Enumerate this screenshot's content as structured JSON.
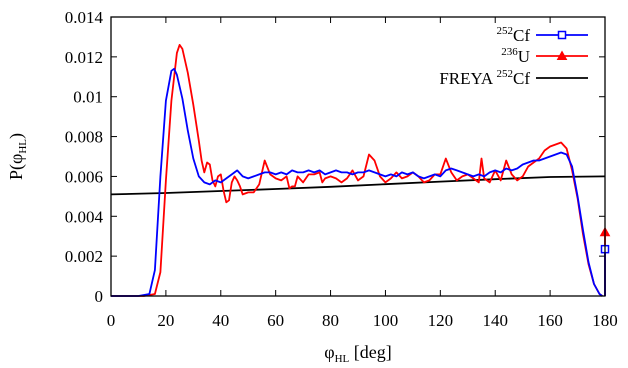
{
  "chart_data": {
    "type": "line",
    "xlabel": {
      "main": "φ",
      "sub": "HL",
      "suffix": " [deg]"
    },
    "ylabel": {
      "prefix": "P(φ",
      "sub": "HL",
      "suffix": ")"
    },
    "xlim": [
      0,
      180
    ],
    "ylim": [
      0,
      0.014
    ],
    "x_ticks": [
      0,
      20,
      40,
      60,
      80,
      100,
      120,
      140,
      160,
      180
    ],
    "y_ticks": [
      0,
      0.002,
      0.004,
      0.006,
      0.008,
      0.01,
      0.012,
      0.014
    ],
    "x_tick_labels": [
      "0",
      "20",
      "40",
      "60",
      "80",
      "100",
      "120",
      "140",
      "160",
      "180"
    ],
    "y_tick_labels": [
      "0",
      "0.002",
      "0.004",
      "0.006",
      "0.008",
      "0.01",
      "0.012",
      "0.014"
    ],
    "grid": false,
    "legend_position": "top-right",
    "series": [
      {
        "name": "252Cf",
        "legend": {
          "sup": "252",
          "text": "Cf"
        },
        "color": "#0000ff",
        "marker": "square",
        "points": [
          [
            0,
            0
          ],
          [
            10,
            0
          ],
          [
            14,
            0.0001
          ],
          [
            16,
            0.0013
          ],
          [
            18,
            0.006
          ],
          [
            20,
            0.0098
          ],
          [
            22,
            0.0113
          ],
          [
            23,
            0.0114
          ],
          [
            24,
            0.0111
          ],
          [
            26,
            0.0099
          ],
          [
            28,
            0.0083
          ],
          [
            30,
            0.0069
          ],
          [
            32,
            0.006
          ],
          [
            34,
            0.0057
          ],
          [
            36,
            0.0056
          ],
          [
            38,
            0.0058
          ],
          [
            40,
            0.0057
          ],
          [
            42,
            0.0059
          ],
          [
            44,
            0.0061
          ],
          [
            46,
            0.0063
          ],
          [
            48,
            0.006
          ],
          [
            50,
            0.0059
          ],
          [
            52,
            0.006
          ],
          [
            54,
            0.0061
          ],
          [
            56,
            0.0062
          ],
          [
            58,
            0.0062
          ],
          [
            60,
            0.0061
          ],
          [
            62,
            0.0062
          ],
          [
            64,
            0.0061
          ],
          [
            66,
            0.0063
          ],
          [
            68,
            0.0062
          ],
          [
            70,
            0.0062
          ],
          [
            72,
            0.0063
          ],
          [
            74,
            0.0062
          ],
          [
            76,
            0.0063
          ],
          [
            78,
            0.0061
          ],
          [
            80,
            0.0062
          ],
          [
            82,
            0.0063
          ],
          [
            84,
            0.0062
          ],
          [
            86,
            0.0062
          ],
          [
            88,
            0.0061
          ],
          [
            90,
            0.0062
          ],
          [
            92,
            0.0062
          ],
          [
            94,
            0.0063
          ],
          [
            96,
            0.0062
          ],
          [
            98,
            0.0061
          ],
          [
            100,
            0.006
          ],
          [
            102,
            0.0061
          ],
          [
            104,
            0.006
          ],
          [
            106,
            0.0062
          ],
          [
            108,
            0.0061
          ],
          [
            110,
            0.0062
          ],
          [
            112,
            0.006
          ],
          [
            114,
            0.0059
          ],
          [
            116,
            0.006
          ],
          [
            118,
            0.0061
          ],
          [
            120,
            0.006
          ],
          [
            122,
            0.0063
          ],
          [
            124,
            0.0064
          ],
          [
            126,
            0.0063
          ],
          [
            128,
            0.0062
          ],
          [
            130,
            0.0061
          ],
          [
            132,
            0.006
          ],
          [
            134,
            0.0061
          ],
          [
            136,
            0.006
          ],
          [
            138,
            0.0062
          ],
          [
            140,
            0.0063
          ],
          [
            142,
            0.0062
          ],
          [
            144,
            0.0064
          ],
          [
            146,
            0.0063
          ],
          [
            148,
            0.0064
          ],
          [
            150,
            0.0066
          ],
          [
            152,
            0.0067
          ],
          [
            154,
            0.0068
          ],
          [
            156,
            0.0068
          ],
          [
            158,
            0.0069
          ],
          [
            160,
            0.007
          ],
          [
            162,
            0.0071
          ],
          [
            164,
            0.0072
          ],
          [
            166,
            0.0071
          ],
          [
            168,
            0.0065
          ],
          [
            170,
            0.005
          ],
          [
            172,
            0.0033
          ],
          [
            174,
            0.0017
          ],
          [
            176,
            0.0006
          ],
          [
            178,
            0.0001
          ],
          [
            179,
            0
          ]
        ],
        "endpoint": [
          180,
          0.00235
        ]
      },
      {
        "name": "236U",
        "legend": {
          "sup": "236",
          "text": "U"
        },
        "color": "#ff0000",
        "marker": "triangle",
        "points": [
          [
            0,
            0
          ],
          [
            12,
            0
          ],
          [
            16,
            0.0001
          ],
          [
            18,
            0.0012
          ],
          [
            20,
            0.0058
          ],
          [
            22,
            0.0098
          ],
          [
            24,
            0.0122
          ],
          [
            25,
            0.0126
          ],
          [
            26,
            0.0124
          ],
          [
            28,
            0.0112
          ],
          [
            30,
            0.0096
          ],
          [
            32,
            0.0078
          ],
          [
            33,
            0.0068
          ],
          [
            34,
            0.0062
          ],
          [
            35,
            0.0067
          ],
          [
            36,
            0.0066
          ],
          [
            37,
            0.0058
          ],
          [
            38,
            0.0055
          ],
          [
            39,
            0.006
          ],
          [
            40,
            0.0061
          ],
          [
            41,
            0.0053
          ],
          [
            42,
            0.0047
          ],
          [
            43,
            0.0048
          ],
          [
            44,
            0.0057
          ],
          [
            45,
            0.006
          ],
          [
            46,
            0.0058
          ],
          [
            47,
            0.0055
          ],
          [
            48,
            0.0051
          ],
          [
            50,
            0.0052
          ],
          [
            52,
            0.0052
          ],
          [
            54,
            0.0056
          ],
          [
            56,
            0.0068
          ],
          [
            58,
            0.0061
          ],
          [
            60,
            0.0059
          ],
          [
            62,
            0.0058
          ],
          [
            64,
            0.006
          ],
          [
            65,
            0.0054
          ],
          [
            66,
            0.0055
          ],
          [
            67,
            0.0055
          ],
          [
            68,
            0.006
          ],
          [
            70,
            0.0057
          ],
          [
            72,
            0.0061
          ],
          [
            74,
            0.0061
          ],
          [
            76,
            0.0062
          ],
          [
            77,
            0.0057
          ],
          [
            78,
            0.0059
          ],
          [
            80,
            0.006
          ],
          [
            82,
            0.0059
          ],
          [
            84,
            0.0057
          ],
          [
            86,
            0.0059
          ],
          [
            88,
            0.0063
          ],
          [
            90,
            0.0058
          ],
          [
            92,
            0.006
          ],
          [
            94,
            0.0071
          ],
          [
            96,
            0.0068
          ],
          [
            98,
            0.006
          ],
          [
            100,
            0.0057
          ],
          [
            102,
            0.0059
          ],
          [
            104,
            0.0062
          ],
          [
            106,
            0.0059
          ],
          [
            108,
            0.006
          ],
          [
            110,
            0.0062
          ],
          [
            112,
            0.006
          ],
          [
            114,
            0.0057
          ],
          [
            116,
            0.0058
          ],
          [
            118,
            0.0061
          ],
          [
            120,
            0.0061
          ],
          [
            122,
            0.0069
          ],
          [
            124,
            0.0062
          ],
          [
            126,
            0.0058
          ],
          [
            128,
            0.006
          ],
          [
            130,
            0.0061
          ],
          [
            132,
            0.0059
          ],
          [
            134,
            0.0057
          ],
          [
            135,
            0.0069
          ],
          [
            136,
            0.0059
          ],
          [
            138,
            0.0057
          ],
          [
            140,
            0.0063
          ],
          [
            142,
            0.0058
          ],
          [
            144,
            0.0068
          ],
          [
            146,
            0.0061
          ],
          [
            148,
            0.0058
          ],
          [
            150,
            0.006
          ],
          [
            152,
            0.0065
          ],
          [
            154,
            0.0067
          ],
          [
            156,
            0.0069
          ],
          [
            158,
            0.0073
          ],
          [
            160,
            0.0075
          ],
          [
            162,
            0.0076
          ],
          [
            164,
            0.0077
          ],
          [
            166,
            0.0074
          ],
          [
            168,
            0.0063
          ],
          [
            170,
            0.0049
          ],
          [
            172,
            0.0031
          ],
          [
            174,
            0.0016
          ],
          [
            176,
            0.0006
          ],
          [
            178,
            0.0001
          ],
          [
            179,
            0
          ]
        ],
        "endpoint": [
          180,
          0.0032
        ]
      },
      {
        "name": "FREYA 252Cf",
        "legend": {
          "prefix": "FREYA ",
          "sup": "252",
          "text": "Cf"
        },
        "color": "#000000",
        "marker": "none",
        "points": [
          [
            0,
            0.0051
          ],
          [
            20,
            0.00517
          ],
          [
            40,
            0.00527
          ],
          [
            60,
            0.00537
          ],
          [
            80,
            0.00548
          ],
          [
            100,
            0.00561
          ],
          [
            120,
            0.00574
          ],
          [
            140,
            0.00586
          ],
          [
            160,
            0.00597
          ],
          [
            180,
            0.006
          ]
        ]
      }
    ]
  }
}
